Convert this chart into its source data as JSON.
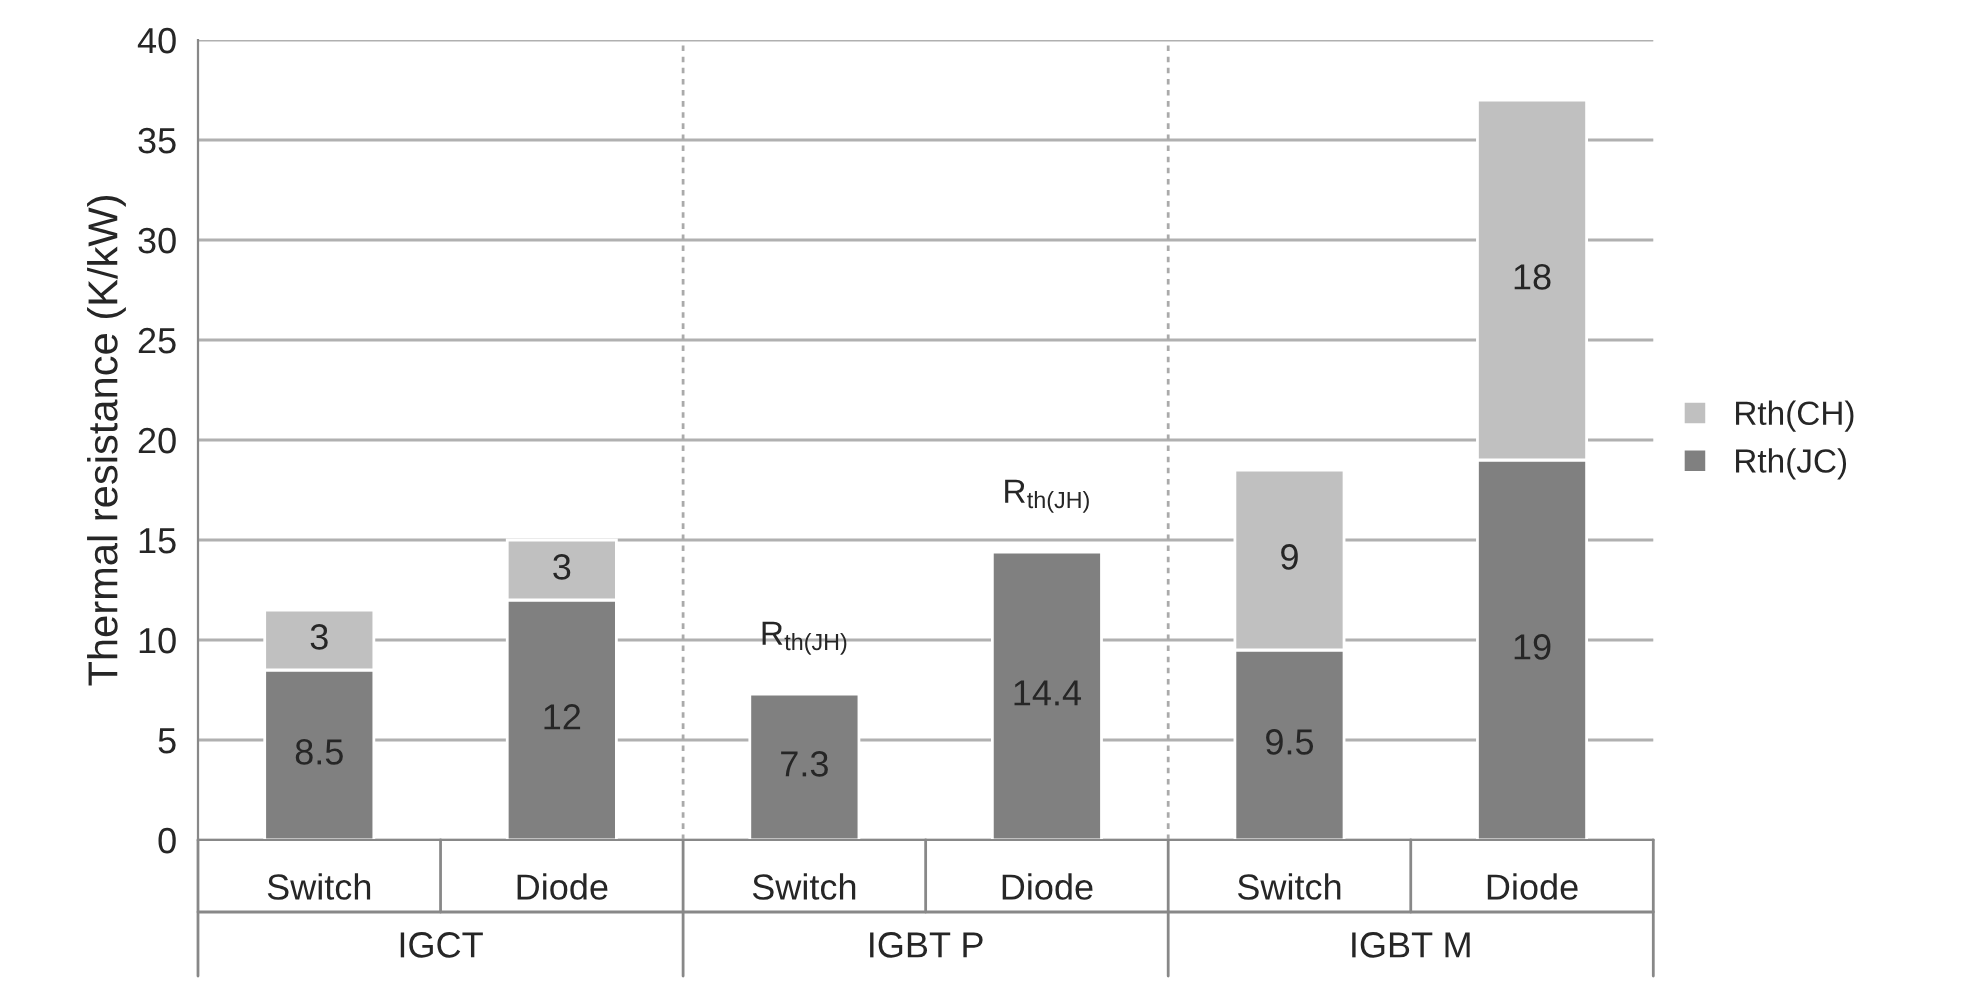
{
  "chart_data": {
    "type": "bar",
    "ylabel": "Thermal resistance (K/kW)",
    "categories": [
      "Switch",
      "Diode",
      "Switch",
      "Diode",
      "Switch",
      "Diode"
    ],
    "stacked": true,
    "series": [
      {
        "name": "Rth(JC)",
        "color": "#808080",
        "values": [
          8.5,
          12,
          7.3,
          14.4,
          9.5,
          19
        ]
      },
      {
        "name": "Rth(CH)",
        "color": "#c0c0c0",
        "values": [
          3,
          3,
          null,
          null,
          9,
          18
        ]
      }
    ],
    "data_labels": true,
    "ylim": [
      0,
      40
    ],
    "yticks": [
      0,
      5,
      10,
      15,
      20,
      25,
      30,
      35,
      40
    ],
    "grid": "y",
    "legend": "right",
    "annotations": [
      "IGCT",
      "IGBT P",
      "IGBT M",
      "R$_{th(JH)}$",
      "R$_{th(JH)}$"
    ]
  }
}
